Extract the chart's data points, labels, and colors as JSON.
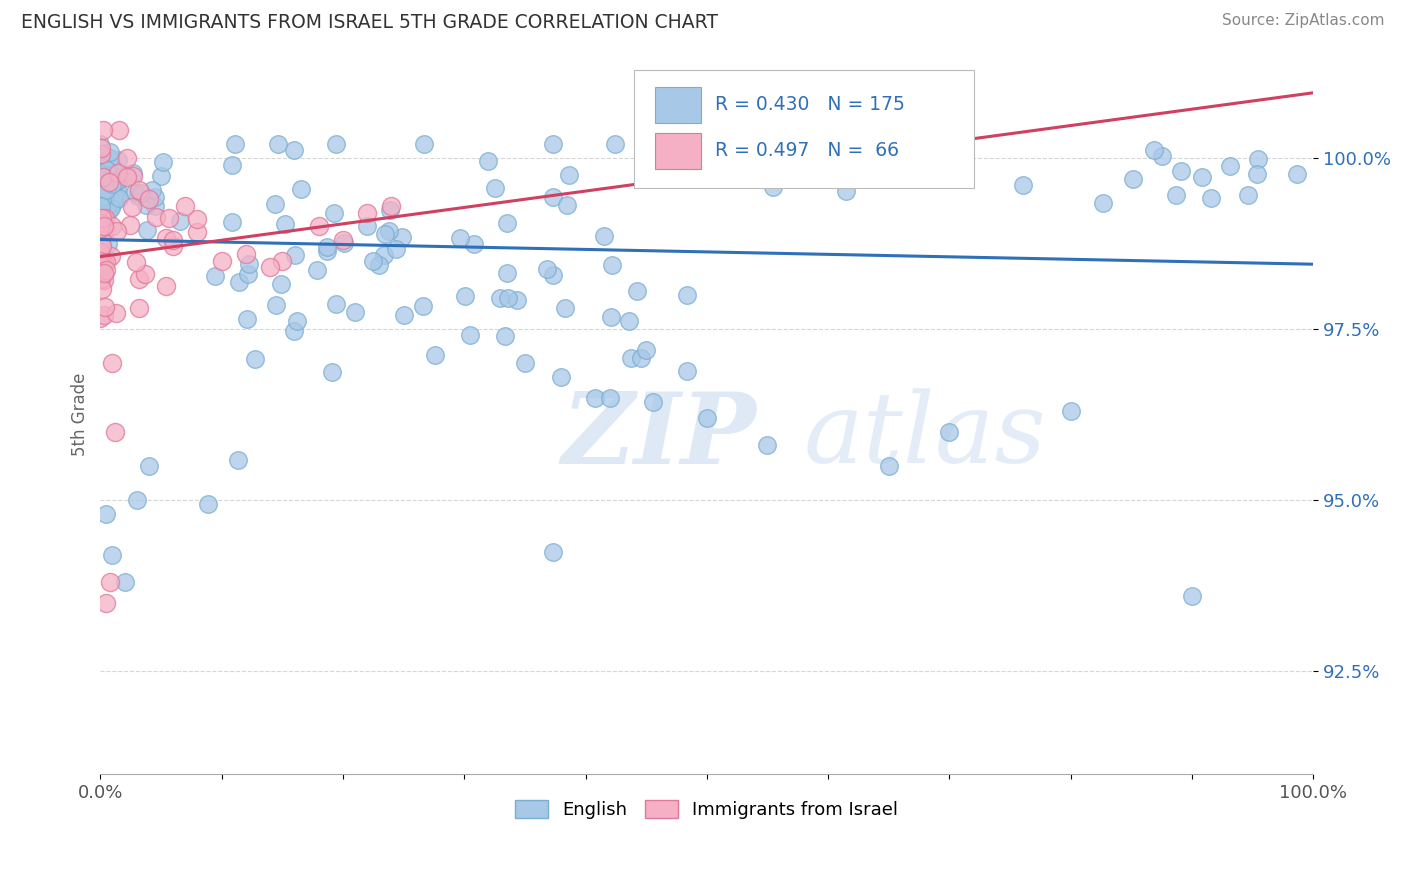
{
  "title": "ENGLISH VS IMMIGRANTS FROM ISRAEL 5TH GRADE CORRELATION CHART",
  "source": "Source: ZipAtlas.com",
  "ylabel": "5th Grade",
  "xlim": [
    0.0,
    1.0
  ],
  "ylim": [
    91.0,
    101.5
  ],
  "yticks": [
    92.5,
    95.0,
    97.5,
    100.0
  ],
  "ytick_labels": [
    "92.5%",
    "95.0%",
    "97.5%",
    "100.0%"
  ],
  "xtick_labels": [
    "0.0%",
    "",
    "",
    "",
    "",
    "",
    "",
    "",
    "",
    "",
    "100.0%"
  ],
  "english_color": "#a8c8e8",
  "english_edge_color": "#7aaed0",
  "israel_color": "#f5b0c5",
  "israel_edge_color": "#e07898",
  "trend_english_color": "#3070b8",
  "trend_israel_color": "#d04060",
  "R_english": 0.43,
  "N_english": 175,
  "R_israel": 0.497,
  "N_israel": 66,
  "background_color": "#ffffff",
  "grid_color": "#cccccc",
  "title_color": "#333333",
  "watermark_zip": "ZIP",
  "watermark_atlas": "atlas",
  "legend_text_color": "#3070b8"
}
